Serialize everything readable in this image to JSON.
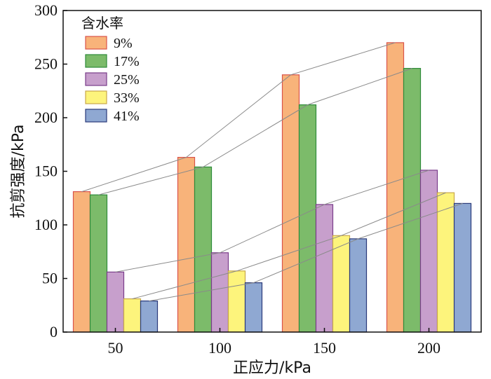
{
  "chart_data": {
    "type": "bar",
    "title": "",
    "xlabel": "正应力/kPa",
    "ylabel": "抗剪强度/kPa",
    "ylim": [
      0,
      300
    ],
    "yticks": [
      0,
      50,
      100,
      150,
      200,
      250,
      300
    ],
    "categories": [
      "50",
      "100",
      "150",
      "200"
    ],
    "legend_title": "含水率",
    "legend_position": "top-left",
    "series": [
      {
        "name": "9%",
        "values": [
          131,
          163,
          240,
          270
        ],
        "color": "#f8b37a",
        "edge": "#d9534a"
      },
      {
        "name": "17%",
        "values": [
          128,
          154,
          212,
          246
        ],
        "color": "#7cbb6a",
        "edge": "#2e8b3a"
      },
      {
        "name": "25%",
        "values": [
          56,
          74,
          119,
          151
        ],
        "color": "#c79fcc",
        "edge": "#7a3c8a"
      },
      {
        "name": "33%",
        "values": [
          31,
          57,
          90,
          130
        ],
        "color": "#fdf47c",
        "edge": "#c8a84a"
      },
      {
        "name": "41%",
        "values": [
          29,
          46,
          87,
          120
        ],
        "color": "#8fa8d2",
        "edge": "#2a3a7a"
      }
    ],
    "trend_lines": true
  }
}
